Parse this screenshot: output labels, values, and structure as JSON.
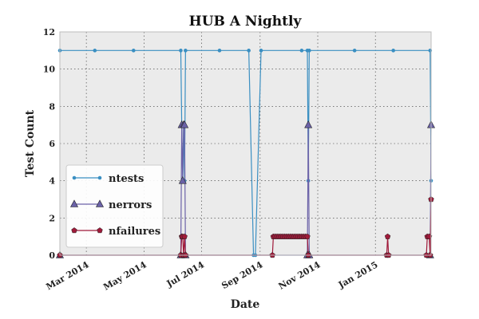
{
  "chart_data": {
    "type": "line",
    "title": "HUB A Nightly",
    "xlabel": "Date",
    "ylabel": "Test Count",
    "xlim": [
      "2014-02-01",
      "2015-03-01"
    ],
    "ylim": [
      0,
      12
    ],
    "grid": true,
    "legend_position": "lower-left",
    "background": "#ebebeb",
    "x_ticks": [
      {
        "date": "2014-03-01",
        "label": "Mar 2014"
      },
      {
        "date": "2014-05-01",
        "label": "May 2014"
      },
      {
        "date": "2014-07-01",
        "label": "Jul 2014"
      },
      {
        "date": "2014-09-01",
        "label": "Sep 2014"
      },
      {
        "date": "2014-11-01",
        "label": "Nov 2014"
      },
      {
        "date": "2015-01-01",
        "label": "Jan 2015"
      }
    ],
    "y_ticks": [
      {
        "value": 0,
        "label": "0"
      },
      {
        "value": 2,
        "label": "2"
      },
      {
        "value": 4,
        "label": "4"
      },
      {
        "value": 6,
        "label": "6"
      },
      {
        "value": 8,
        "label": "8"
      },
      {
        "value": 10,
        "label": "10"
      },
      {
        "value": 12,
        "label": "12"
      }
    ],
    "series": [
      {
        "name": "ntests",
        "color": "#3a8fc2",
        "marker": "circle",
        "points": [
          [
            "2014-02-01",
            11
          ],
          [
            "2014-03-10",
            11
          ],
          [
            "2014-04-20",
            11
          ],
          [
            "2014-06-09",
            11
          ],
          [
            "2014-06-10",
            7
          ],
          [
            "2014-06-11",
            4
          ],
          [
            "2014-06-12",
            7
          ],
          [
            "2014-06-13",
            4
          ],
          [
            "2014-06-14",
            11
          ],
          [
            "2014-07-20",
            11
          ],
          [
            "2014-08-20",
            11
          ],
          [
            "2014-08-25",
            0
          ],
          [
            "2014-08-27",
            0
          ],
          [
            "2014-09-02",
            11
          ],
          [
            "2014-10-15",
            11
          ],
          [
            "2014-10-21",
            11
          ],
          [
            "2014-10-22",
            4
          ],
          [
            "2014-10-23",
            11
          ],
          [
            "2014-12-10",
            11
          ],
          [
            "2015-01-20",
            11
          ],
          [
            "2015-02-28",
            11
          ],
          [
            "2015-03-01",
            4
          ]
        ]
      },
      {
        "name": "nerrors",
        "color": "#6b62a8",
        "marker": "triangle",
        "points": [
          [
            "2014-02-01",
            0
          ],
          [
            "2014-06-09",
            0
          ],
          [
            "2014-06-10",
            7
          ],
          [
            "2014-06-11",
            4
          ],
          [
            "2014-06-12",
            7
          ],
          [
            "2014-06-13",
            7
          ],
          [
            "2014-06-14",
            0
          ],
          [
            "2014-10-21",
            0
          ],
          [
            "2014-10-22",
            7
          ],
          [
            "2014-10-23",
            0
          ],
          [
            "2015-02-28",
            0
          ],
          [
            "2015-03-01",
            7
          ]
        ]
      },
      {
        "name": "nfailures",
        "color": "#a01a3a",
        "marker": "pentagon",
        "points": [
          [
            "2014-02-01",
            0
          ],
          [
            "2014-06-09",
            0
          ],
          [
            "2014-06-10",
            1
          ],
          [
            "2014-06-11",
            1
          ],
          [
            "2014-06-12",
            0
          ],
          [
            "2014-06-13",
            1
          ],
          [
            "2014-06-14",
            0
          ],
          [
            "2014-09-14",
            0
          ],
          [
            "2014-09-15",
            1
          ],
          [
            "2014-09-17",
            1
          ],
          [
            "2014-09-19",
            1
          ],
          [
            "2014-09-21",
            1
          ],
          [
            "2014-09-23",
            1
          ],
          [
            "2014-09-25",
            1
          ],
          [
            "2014-09-27",
            1
          ],
          [
            "2014-09-29",
            1
          ],
          [
            "2014-10-01",
            1
          ],
          [
            "2014-10-03",
            1
          ],
          [
            "2014-10-05",
            1
          ],
          [
            "2014-10-07",
            1
          ],
          [
            "2014-10-09",
            1
          ],
          [
            "2014-10-11",
            1
          ],
          [
            "2014-10-13",
            1
          ],
          [
            "2014-10-15",
            1
          ],
          [
            "2014-10-17",
            1
          ],
          [
            "2014-10-19",
            1
          ],
          [
            "2014-10-21",
            1
          ],
          [
            "2014-10-22",
            0
          ],
          [
            "2015-01-13",
            0
          ],
          [
            "2015-01-14",
            1
          ],
          [
            "2015-01-15",
            0
          ],
          [
            "2015-02-24",
            0
          ],
          [
            "2015-02-25",
            1
          ],
          [
            "2015-02-27",
            1
          ],
          [
            "2015-02-28",
            0
          ],
          [
            "2015-03-01",
            3
          ]
        ]
      }
    ]
  }
}
